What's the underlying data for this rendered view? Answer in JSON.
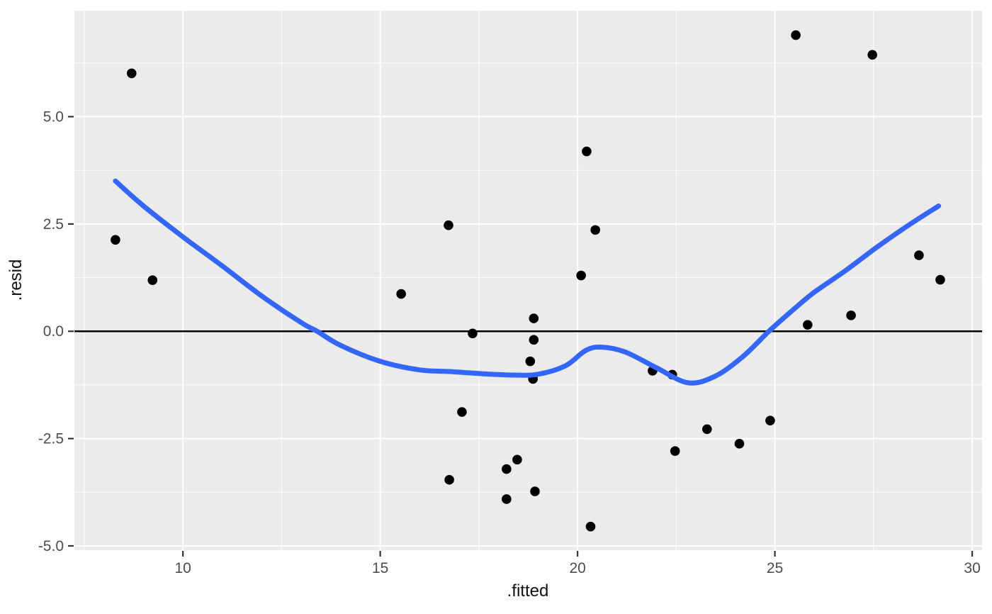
{
  "chart_data": {
    "type": "scatter",
    "title": "",
    "xlabel": ".fitted",
    "ylabel": ".resid",
    "xlim": [
      7.25,
      30.25
    ],
    "ylim": [
      -5.1,
      7.47
    ],
    "grid": true,
    "legend": "none",
    "x_ticks": [
      {
        "value": 10,
        "label": "10"
      },
      {
        "value": 15,
        "label": "15"
      },
      {
        "value": 20,
        "label": "20"
      },
      {
        "value": 25,
        "label": "25"
      },
      {
        "value": 30,
        "label": "30"
      }
    ],
    "y_ticks": [
      {
        "value": 5.0,
        "label": "5.0"
      },
      {
        "value": 2.5,
        "label": "2.5"
      },
      {
        "value": 0.0,
        "label": "0.0"
      },
      {
        "value": -2.5,
        "label": "-2.5"
      },
      {
        "value": -5.0,
        "label": "-5.0"
      }
    ],
    "x_minor_ticks": [
      7.5,
      12.5,
      17.5,
      22.5,
      27.5
    ],
    "y_minor_ticks": [
      6.25,
      3.75,
      1.25,
      -1.25,
      -3.75
    ],
    "reference_line_y": 0,
    "colors": {
      "panel_background": "#EBEBEB",
      "grid_major": "#FFFFFF",
      "grid_minor": "#FFFFFF",
      "point": "#000000",
      "smooth_line": "#3366FF",
      "reference_line": "#000000",
      "tick_label": "#4D4D4D",
      "axis_title": "#111111",
      "tick_mark": "#333333"
    },
    "series": [
      {
        "name": "residuals",
        "geom": "point",
        "points": [
          [
            8.29,
            2.13
          ],
          [
            8.7,
            6.01
          ],
          [
            9.23,
            1.19
          ],
          [
            15.53,
            0.87
          ],
          [
            16.73,
            2.47
          ],
          [
            16.75,
            -3.46
          ],
          [
            17.07,
            -1.88
          ],
          [
            17.34,
            -0.05
          ],
          [
            18.2,
            -3.21
          ],
          [
            18.2,
            -3.91
          ],
          [
            18.47,
            -2.99
          ],
          [
            18.89,
            0.3
          ],
          [
            18.89,
            -0.2
          ],
          [
            18.8,
            -0.7
          ],
          [
            18.87,
            -1.11
          ],
          [
            18.92,
            -3.73
          ],
          [
            20.09,
            1.3
          ],
          [
            20.23,
            4.19
          ],
          [
            20.45,
            2.36
          ],
          [
            20.33,
            -4.55
          ],
          [
            21.9,
            -0.92
          ],
          [
            22.4,
            -1.01
          ],
          [
            22.47,
            -2.79
          ],
          [
            23.28,
            -2.28
          ],
          [
            24.1,
            -2.62
          ],
          [
            24.88,
            -2.08
          ],
          [
            25.53,
            6.9
          ],
          [
            25.83,
            0.15
          ],
          [
            26.93,
            0.37
          ],
          [
            27.47,
            6.44
          ],
          [
            28.65,
            1.77
          ],
          [
            29.19,
            1.2
          ]
        ]
      },
      {
        "name": "loess-smooth",
        "geom": "line",
        "points": [
          [
            8.29,
            3.5
          ],
          [
            9.0,
            2.92
          ],
          [
            10.0,
            2.2
          ],
          [
            11.0,
            1.52
          ],
          [
            12.0,
            0.82
          ],
          [
            13.0,
            0.2
          ],
          [
            13.4,
            0.0
          ],
          [
            14.0,
            -0.33
          ],
          [
            15.0,
            -0.7
          ],
          [
            16.0,
            -0.9
          ],
          [
            16.8,
            -0.94
          ],
          [
            17.6,
            -0.99
          ],
          [
            18.4,
            -1.02
          ],
          [
            19.0,
            -1.0
          ],
          [
            19.7,
            -0.8
          ],
          [
            20.2,
            -0.45
          ],
          [
            20.6,
            -0.37
          ],
          [
            21.2,
            -0.48
          ],
          [
            22.0,
            -0.85
          ],
          [
            22.8,
            -1.2
          ],
          [
            23.5,
            -1.04
          ],
          [
            24.2,
            -0.58
          ],
          [
            24.85,
            0.0
          ],
          [
            25.5,
            0.53
          ],
          [
            26.0,
            0.91
          ],
          [
            26.8,
            1.42
          ],
          [
            27.6,
            1.97
          ],
          [
            28.4,
            2.48
          ],
          [
            29.15,
            2.92
          ]
        ]
      }
    ]
  }
}
